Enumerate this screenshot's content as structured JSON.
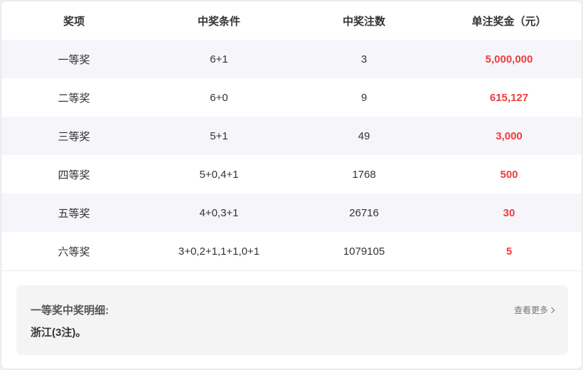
{
  "table": {
    "headers": [
      "奖项",
      "中奖条件",
      "中奖注数",
      "单注奖金（元）"
    ],
    "rows": [
      {
        "prize": "一等奖",
        "condition": "6+1",
        "count": "3",
        "amount": "5,000,000"
      },
      {
        "prize": "二等奖",
        "condition": "6+0",
        "count": "9",
        "amount": "615,127"
      },
      {
        "prize": "三等奖",
        "condition": "5+1",
        "count": "49",
        "amount": "3,000"
      },
      {
        "prize": "四等奖",
        "condition": "5+0,4+1",
        "count": "1768",
        "amount": "500"
      },
      {
        "prize": "五等奖",
        "condition": "4+0,3+1",
        "count": "26716",
        "amount": "30"
      },
      {
        "prize": "六等奖",
        "condition": "3+0,2+1,1+1,0+1",
        "count": "1079105",
        "amount": "5"
      }
    ]
  },
  "detail": {
    "title": "一等奖中奖明细:",
    "body": "浙江(3注)。",
    "more_label": "查看更多",
    "more_icon": "chevron-right-icon"
  },
  "colors": {
    "amount": "#f03c3c",
    "alt_row": "#f5f5fa"
  }
}
